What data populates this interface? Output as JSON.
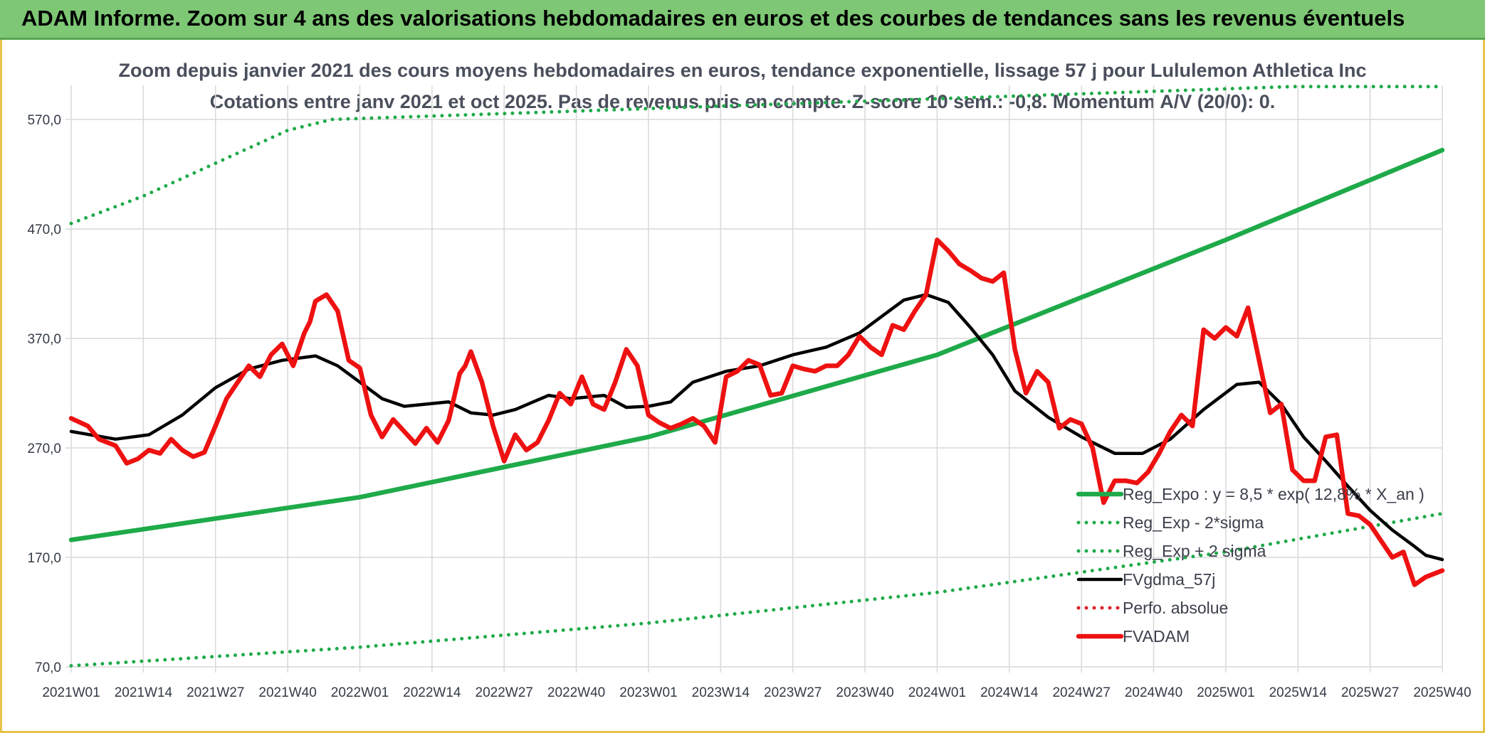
{
  "header": {
    "banner_title": "ADAM Informe. Zoom sur 4 ans des valorisations hebdomadaires en euros et des courbes de tendances sans les revenus éventuels"
  },
  "colors": {
    "banner_bg": "#7dc775",
    "border": "#e7c34a",
    "trend": "#1faa4a",
    "fvadam": "#ee1111",
    "fvgdma": "#000000",
    "perfo": "#dd2222",
    "grid": "#d9d9d9"
  },
  "chart_data": {
    "type": "line",
    "title": "Zoom depuis janvier 2021 des cours moyens hebdomadaires en euros, tendance exponentielle, lissage 57 j pour Lululemon Athletica Inc",
    "subtitle": "Cotations entre janv 2021 et oct 2025. Pas de revenus pris en compte. Z-score 10 sem.: -0,8. Momentum A/V (20/0): 0.",
    "xlabel": "",
    "ylabel": "",
    "x_range": [
      0,
      247
    ],
    "ylim": [
      70,
      600
    ],
    "y_ticks": [
      70,
      170,
      270,
      370,
      470,
      570
    ],
    "y_tick_labels": [
      "70,0",
      "170,0",
      "270,0",
      "370,0",
      "470,0",
      "570,0"
    ],
    "x_ticks": [
      0,
      13,
      26,
      39,
      52,
      65,
      78,
      91,
      104,
      117,
      130,
      143,
      156,
      169,
      182,
      195,
      208,
      221,
      234,
      247
    ],
    "x_tick_labels": [
      "2021W01",
      "2021W14",
      "2021W27",
      "2021W40",
      "2022W01",
      "2022W14",
      "2022W27",
      "2022W40",
      "2023W01",
      "2023W14",
      "2023W27",
      "2023W40",
      "2024W01",
      "2024W14",
      "2024W27",
      "2024W40",
      "2025W01",
      "2025W14",
      "2025W27",
      "2025W40"
    ],
    "grid": true,
    "legend_position": "bottom-right",
    "series": [
      {
        "name": "Reg_Expo : y = 8,5 * exp( 12,8% * X_an )",
        "style": "solid-thick",
        "color": "#1faa4a",
        "x": [
          0,
          52,
          104,
          156,
          208,
          247
        ],
        "values": [
          186,
          225,
          280,
          355,
          460,
          542
        ]
      },
      {
        "name": "Reg_Exp - 2*sigma",
        "style": "dotted",
        "color": "#1faa4a",
        "x": [
          0,
          52,
          104,
          156,
          208,
          247
        ],
        "values": [
          71,
          88,
          110,
          138,
          175,
          210
        ]
      },
      {
        "name": "Reg_Exp + 2 sigma",
        "style": "dotted",
        "color": "#1faa4a",
        "x": [
          0,
          13,
          26,
          39,
          47,
          220,
          247
        ],
        "values": [
          475,
          500,
          530,
          560,
          570,
          600,
          600
        ]
      },
      {
        "name": "FVgdma_57j",
        "style": "solid",
        "color": "#000000",
        "x": [
          0,
          8,
          14,
          20,
          26,
          32,
          38,
          44,
          48,
          52,
          56,
          60,
          64,
          68,
          72,
          76,
          80,
          86,
          90,
          96,
          100,
          104,
          108,
          112,
          118,
          124,
          130,
          136,
          142,
          146,
          150,
          154,
          158,
          162,
          166,
          170,
          176,
          182,
          188,
          193,
          198,
          204,
          210,
          214,
          218,
          222,
          226,
          230,
          234,
          238,
          242,
          244,
          247
        ],
        "values": [
          285,
          278,
          282,
          300,
          325,
          342,
          350,
          354,
          345,
          330,
          315,
          308,
          310,
          312,
          302,
          300,
          305,
          318,
          315,
          318,
          307,
          308,
          312,
          330,
          340,
          345,
          355,
          362,
          375,
          390,
          405,
          410,
          403,
          380,
          355,
          322,
          298,
          280,
          265,
          265,
          278,
          305,
          328,
          330,
          310,
          280,
          258,
          235,
          213,
          195,
          180,
          172,
          168
        ]
      },
      {
        "name": "Perfo. absolue",
        "style": "dotted",
        "color": "#dd2222",
        "x": [],
        "values": []
      },
      {
        "name": "FVADAM",
        "style": "solid-thick",
        "color": "#ee1111",
        "x": [
          0,
          3,
          5,
          8,
          10,
          12,
          14,
          16,
          18,
          20,
          22,
          24,
          26,
          28,
          30,
          32,
          34,
          36,
          38,
          40,
          42,
          43,
          44,
          46,
          48,
          50,
          52,
          54,
          56,
          58,
          60,
          62,
          64,
          66,
          68,
          70,
          71,
          72,
          74,
          76,
          78,
          80,
          82,
          84,
          86,
          88,
          90,
          92,
          94,
          96,
          98,
          100,
          102,
          104,
          106,
          108,
          110,
          112,
          114,
          116,
          118,
          120,
          122,
          124,
          126,
          128,
          130,
          132,
          134,
          136,
          138,
          140,
          142,
          144,
          146,
          148,
          150,
          152,
          154,
          156,
          158,
          160,
          162,
          164,
          166,
          168,
          170,
          172,
          174,
          176,
          178,
          180,
          182,
          184,
          186,
          188,
          190,
          192,
          194,
          196,
          198,
          200,
          202,
          204,
          206,
          208,
          210,
          212,
          214,
          216,
          218,
          220,
          222,
          224,
          226,
          228,
          230,
          232,
          234,
          236,
          238,
          240,
          242,
          244,
          247
        ],
        "values": [
          297,
          290,
          278,
          272,
          256,
          260,
          268,
          265,
          278,
          268,
          262,
          266,
          290,
          315,
          330,
          345,
          335,
          355,
          365,
          345,
          375,
          385,
          404,
          410,
          395,
          350,
          343,
          300,
          280,
          296,
          285,
          274,
          288,
          275,
          295,
          338,
          345,
          358,
          330,
          290,
          258,
          282,
          268,
          275,
          295,
          320,
          310,
          335,
          310,
          305,
          330,
          360,
          345,
          300,
          293,
          288,
          292,
          297,
          290,
          275,
          335,
          340,
          350,
          346,
          318,
          320,
          345,
          342,
          340,
          345,
          345,
          355,
          372,
          362,
          355,
          382,
          378,
          395,
          410,
          460,
          450,
          438,
          432,
          425,
          422,
          430,
          360,
          320,
          340,
          330,
          288,
          296,
          292,
          270,
          220,
          240,
          240,
          238,
          248,
          265,
          285,
          300,
          290,
          378,
          370,
          380,
          372,
          398,
          350,
          302,
          310,
          250,
          240,
          240,
          280,
          282,
          210,
          208,
          200,
          185,
          170,
          175,
          145,
          152,
          158
        ]
      }
    ]
  }
}
